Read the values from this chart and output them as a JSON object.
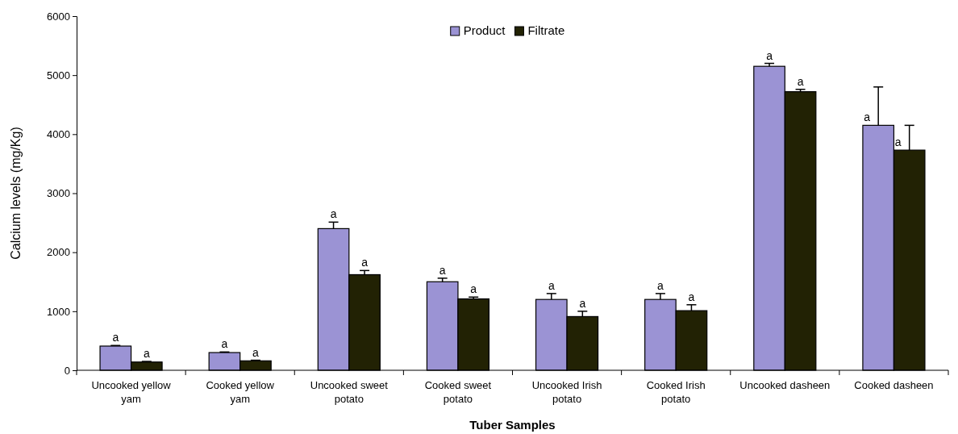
{
  "chart_data": {
    "type": "bar",
    "xlabel": "Tuber Samples",
    "ylabel": "Calcium levels (mg/Kg)",
    "categories": [
      "Uncooked yellow yam",
      "Cooked yellow yam",
      "Uncooked sweet potato",
      "Cooked sweet potato",
      "Uncooked Irish potato",
      "Cooked Irish potato",
      "Uncooked dasheen",
      "Cooked dasheen"
    ],
    "series": [
      {
        "name": "Product",
        "color": "#9b93d4",
        "values": [
          410,
          300,
          2400,
          1500,
          1200,
          1200,
          5150,
          4150
        ],
        "errors": [
          [
            410,
            420
          ],
          [
            300,
            310
          ],
          [
            2400,
            2510
          ],
          [
            1500,
            1560
          ],
          [
            1200,
            1300
          ],
          [
            1200,
            1300
          ],
          [
            5150,
            5200
          ],
          [
            4150,
            4800
          ]
        ],
        "value_labels": [
          "a",
          "a",
          "a",
          "a",
          "a",
          "a",
          "a",
          "a"
        ]
      },
      {
        "name": "Filtrate",
        "color": "#222204",
        "values": [
          140,
          160,
          1620,
          1210,
          910,
          1010,
          4720,
          3730
        ],
        "errors": [
          [
            140,
            150
          ],
          [
            160,
            170
          ],
          [
            1620,
            1690
          ],
          [
            1210,
            1240
          ],
          [
            910,
            1000
          ],
          [
            1010,
            1110
          ],
          [
            4720,
            4760
          ],
          [
            3730,
            4150
          ]
        ],
        "value_labels": [
          "a",
          "a",
          "a",
          "a",
          "a",
          "a",
          "a",
          "a"
        ]
      }
    ],
    "ylim": [
      0,
      6000
    ],
    "yticks": [
      0,
      1000,
      2000,
      3000,
      4000,
      5000,
      6000
    ],
    "grid": false,
    "legend": "top"
  }
}
